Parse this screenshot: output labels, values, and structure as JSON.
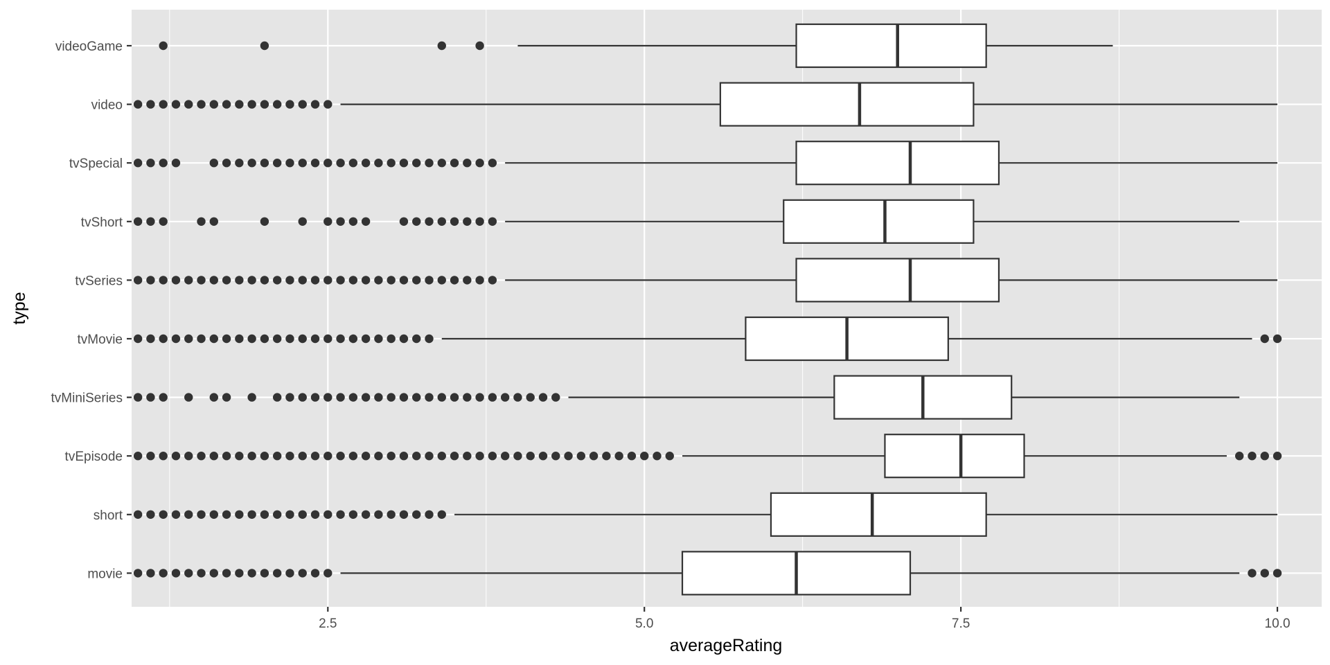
{
  "chart_data": {
    "type": "boxplot",
    "orientation": "horizontal",
    "xlabel": "averageRating",
    "ylabel": "type",
    "xlim": [
      0.95,
      10.35
    ],
    "x_ticks": [
      2.5,
      5.0,
      7.5,
      10.0
    ],
    "x_tick_labels": [
      "2.5",
      "5.0",
      "7.5",
      "10.0"
    ],
    "grid": true,
    "categories": [
      "movie",
      "short",
      "tvEpisode",
      "tvMiniSeries",
      "tvMovie",
      "tvSeries",
      "tvShort",
      "tvSpecial",
      "video",
      "videoGame"
    ],
    "boxes": [
      {
        "category": "movie",
        "whisker_low": 2.6,
        "q1": 5.3,
        "median": 6.2,
        "q3": 7.1,
        "whisker_high": 9.7,
        "outliers": [
          1.0,
          1.1,
          1.2,
          1.3,
          1.4,
          1.5,
          1.6,
          1.7,
          1.8,
          1.9,
          2.0,
          2.1,
          2.2,
          2.3,
          2.4,
          2.5,
          9.8,
          9.9,
          10.0
        ]
      },
      {
        "category": "short",
        "whisker_low": 3.5,
        "q1": 6.0,
        "median": 6.8,
        "q3": 7.7,
        "whisker_high": 10.0,
        "outliers": [
          1.0,
          1.1,
          1.2,
          1.3,
          1.4,
          1.5,
          1.6,
          1.7,
          1.8,
          1.9,
          2.0,
          2.1,
          2.2,
          2.3,
          2.4,
          2.5,
          2.6,
          2.7,
          2.8,
          2.9,
          3.0,
          3.1,
          3.2,
          3.3,
          3.4
        ]
      },
      {
        "category": "tvEpisode",
        "whisker_low": 5.3,
        "q1": 6.9,
        "median": 7.5,
        "q3": 8.0,
        "whisker_high": 9.6,
        "outliers": [
          1.0,
          1.1,
          1.2,
          1.3,
          1.4,
          1.5,
          1.6,
          1.7,
          1.8,
          1.9,
          2.0,
          2.1,
          2.2,
          2.3,
          2.4,
          2.5,
          2.6,
          2.7,
          2.8,
          2.9,
          3.0,
          3.1,
          3.2,
          3.3,
          3.4,
          3.5,
          3.6,
          3.7,
          3.8,
          3.9,
          4.0,
          4.1,
          4.2,
          4.3,
          4.4,
          4.5,
          4.6,
          4.7,
          4.8,
          4.9,
          5.0,
          5.1,
          5.2,
          9.7,
          9.8,
          9.9,
          10.0
        ]
      },
      {
        "category": "tvMiniSeries",
        "whisker_low": 4.4,
        "q1": 6.5,
        "median": 7.2,
        "q3": 7.9,
        "whisker_high": 9.7,
        "outliers": [
          1.0,
          1.1,
          1.2,
          1.4,
          1.6,
          1.7,
          1.9,
          2.1,
          2.2,
          2.3,
          2.4,
          2.5,
          2.6,
          2.7,
          2.8,
          2.9,
          3.0,
          3.1,
          3.2,
          3.3,
          3.4,
          3.5,
          3.6,
          3.7,
          3.8,
          3.9,
          4.0,
          4.1,
          4.2,
          4.3
        ]
      },
      {
        "category": "tvMovie",
        "whisker_low": 3.4,
        "q1": 5.8,
        "median": 6.6,
        "q3": 7.4,
        "whisker_high": 9.8,
        "outliers": [
          1.0,
          1.1,
          1.2,
          1.3,
          1.4,
          1.5,
          1.6,
          1.7,
          1.8,
          1.9,
          2.0,
          2.1,
          2.2,
          2.3,
          2.4,
          2.5,
          2.6,
          2.7,
          2.8,
          2.9,
          3.0,
          3.1,
          3.2,
          3.3,
          9.9,
          10.0
        ]
      },
      {
        "category": "tvSeries",
        "whisker_low": 3.9,
        "q1": 6.2,
        "median": 7.1,
        "q3": 7.8,
        "whisker_high": 10.0,
        "outliers": [
          1.0,
          1.1,
          1.2,
          1.3,
          1.4,
          1.5,
          1.6,
          1.7,
          1.8,
          1.9,
          2.0,
          2.1,
          2.2,
          2.3,
          2.4,
          2.5,
          2.6,
          2.7,
          2.8,
          2.9,
          3.0,
          3.1,
          3.2,
          3.3,
          3.4,
          3.5,
          3.6,
          3.7,
          3.8
        ]
      },
      {
        "category": "tvShort",
        "whisker_low": 3.9,
        "q1": 6.1,
        "median": 6.9,
        "q3": 7.6,
        "whisker_high": 9.7,
        "outliers": [
          1.0,
          1.1,
          1.2,
          1.5,
          1.6,
          2.0,
          2.3,
          2.5,
          2.6,
          2.7,
          2.8,
          3.1,
          3.2,
          3.3,
          3.4,
          3.5,
          3.6,
          3.7,
          3.8
        ]
      },
      {
        "category": "tvSpecial",
        "whisker_low": 3.9,
        "q1": 6.2,
        "median": 7.1,
        "q3": 7.8,
        "whisker_high": 10.0,
        "outliers": [
          1.0,
          1.1,
          1.2,
          1.3,
          1.6,
          1.7,
          1.8,
          1.9,
          2.0,
          2.1,
          2.2,
          2.3,
          2.4,
          2.5,
          2.6,
          2.7,
          2.8,
          2.9,
          3.0,
          3.1,
          3.2,
          3.3,
          3.4,
          3.5,
          3.6,
          3.7,
          3.8
        ]
      },
      {
        "category": "video",
        "whisker_low": 2.6,
        "q1": 5.6,
        "median": 6.7,
        "q3": 7.6,
        "whisker_high": 10.0,
        "outliers": [
          1.0,
          1.1,
          1.2,
          1.3,
          1.4,
          1.5,
          1.6,
          1.7,
          1.8,
          1.9,
          2.0,
          2.1,
          2.2,
          2.3,
          2.4,
          2.5
        ]
      },
      {
        "category": "videoGame",
        "whisker_low": 4.0,
        "q1": 6.2,
        "median": 7.0,
        "q3": 7.7,
        "whisker_high": 8.7,
        "outliers": [
          1.2,
          2.0,
          3.4,
          3.7
        ]
      }
    ],
    "colors": {
      "panel_background": "#e5e5e5",
      "grid": "#ffffff",
      "box_fill": "#ffffff",
      "box_stroke": "#333333",
      "tick_text": "#4d4d4d",
      "title_text": "#000000"
    }
  }
}
